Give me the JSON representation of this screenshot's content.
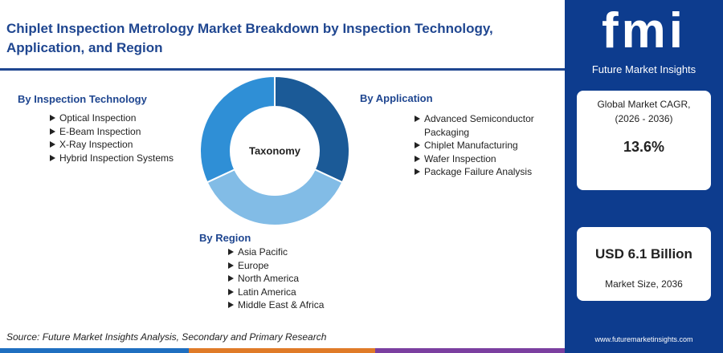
{
  "header": {
    "title": "Chiplet Inspection Metrology Market Breakdown by Inspection Technology, Application, and Region"
  },
  "taxonomy": {
    "center_label": "Taxonomy",
    "technology": {
      "title": "By Inspection Technology",
      "items": [
        "Optical Inspection",
        "E-Beam Inspection",
        "X-Ray Inspection",
        "Hybrid Inspection Systems"
      ]
    },
    "application": {
      "title": "By Application",
      "items": [
        "Advanced Semiconductor Packaging",
        "Chiplet Manufacturing",
        "Wafer Inspection",
        "Package Failure Analysis"
      ]
    },
    "region": {
      "title": "By Region",
      "items": [
        "Asia Pacific",
        "Europe",
        "North America",
        "Latin America",
        "Middle East & Africa"
      ]
    }
  },
  "sidebar": {
    "logo": {
      "mark": "fmi",
      "name": "Future Market Insights"
    },
    "cagr": {
      "label": "Global Market CAGR, (2026 - 2036)",
      "value": "13.6%"
    },
    "market_size": {
      "value": "USD 6.1 Billion",
      "label": "Market Size, 2036"
    },
    "website": "www.futuremarketinsights.com"
  },
  "footer": {
    "source": "Source: Future Market Insights Analysis, Secondary and Primary Research"
  }
}
